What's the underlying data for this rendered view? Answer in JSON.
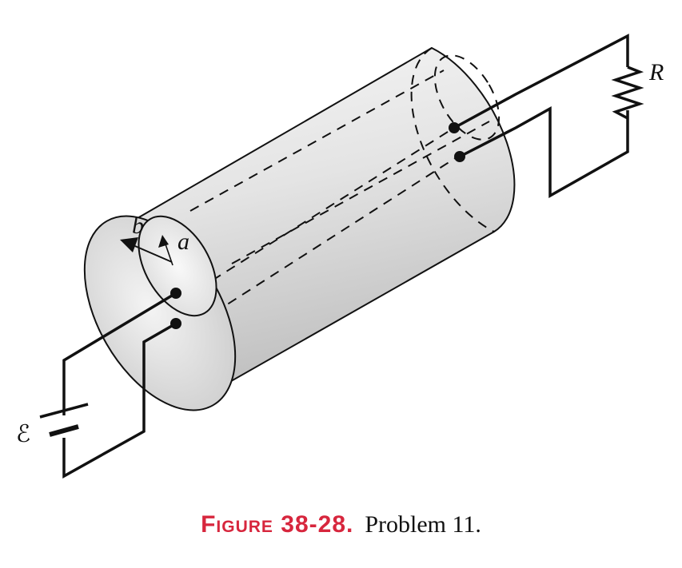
{
  "labels": {
    "outer_radius": "b",
    "inner_radius": "a",
    "resistor": "R",
    "emf": "ℰ"
  },
  "caption": {
    "figure_label": "Figure 38-28.",
    "text": "Problem 11."
  },
  "colors": {
    "caption_accent": "#d7263d",
    "ink": "#111111"
  }
}
